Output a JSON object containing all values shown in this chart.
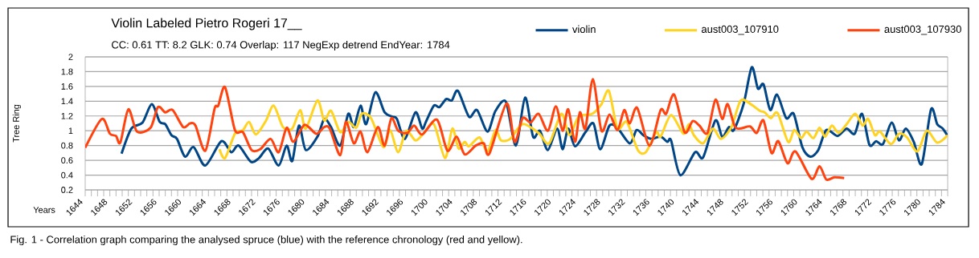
{
  "chart_data": {
    "type": "line",
    "title": "Violin Labeled Pietro Rogeri 17__",
    "subtitle": "CC: 0.61 TT: 8.2 GLK: 0.74 Overlap: 117 NegExp detrend EndYear: 1784",
    "xlabel": "Years",
    "ylabel": "Tree Ring",
    "annotations": [
      "Fig. 1 - Correlation graph comparing the analysed spruce (blue) with the reference chronology (red and yellow)."
    ],
    "xlim": [
      1644,
      1784
    ],
    "ylim": [
      0.2,
      2
    ],
    "xticks": [
      1644,
      1648,
      1652,
      1656,
      1660,
      1664,
      1668,
      1672,
      1676,
      1680,
      1684,
      1688,
      1692,
      1696,
      1700,
      1704,
      1708,
      1712,
      1716,
      1720,
      1724,
      1728,
      1732,
      1736,
      1740,
      1744,
      1748,
      1752,
      1756,
      1760,
      1764,
      1768,
      1772,
      1776,
      1780,
      1784
    ],
    "yticks": [
      0.2,
      0.4,
      0.6,
      0.8,
      1,
      1.2,
      1.4,
      1.6,
      1.8,
      2
    ],
    "grid": "y",
    "legend": "top right",
    "series": [
      {
        "name": "violin",
        "color": "#004586",
        "x": [
          1649.9,
          1651.5,
          1653.3,
          1654.8,
          1656.1,
          1657,
          1658,
          1658.9,
          1660.2,
          1661.6,
          1663.5,
          1666.1,
          1667.7,
          1668.9,
          1670.9,
          1672.2,
          1673.7,
          1675.4,
          1676.7,
          1677.6,
          1678.7,
          1679.8,
          1681.7,
          1682.8,
          1683.9,
          1685.4,
          1686.7,
          1687.6,
          1688.7,
          1689.6,
          1691.1,
          1692.6,
          1693.9,
          1694.6,
          1695.9,
          1697.6,
          1698.7,
          1699.3,
          1700.6,
          1701.5,
          1702.6,
          1703.5,
          1704.5,
          1706.3,
          1707.6,
          1709.3,
          1710.6,
          1712.3,
          1713.9,
          1715.4,
          1716.7,
          1717.8,
          1719.1,
          1720.6,
          1721.5,
          1722.4,
          1723.5,
          1725.2,
          1726.5,
          1727.6,
          1729.1,
          1730.4,
          1732.4,
          1733.5,
          1734.6,
          1735.9,
          1737.4,
          1738.5,
          1739.1,
          1740.6,
          1743,
          1744.3,
          1746.3,
          1747.4,
          1748.5,
          1749.3,
          1750.9,
          1752.2,
          1753.2,
          1754.1,
          1755.2,
          1756.3,
          1757.8,
          1759,
          1760.4,
          1761.7,
          1763,
          1764.3,
          1766.1,
          1767.6,
          1768.9,
          1770.1,
          1771.3,
          1772.4,
          1773.5,
          1774.9,
          1776.1,
          1777.2,
          1778.5,
          1779.8,
          1781.3,
          1782.3,
          1783.2,
          1784
        ],
        "values": [
          0.69,
          1.03,
          1.11,
          1.36,
          1.12,
          1.09,
          0.94,
          0.89,
          0.65,
          0.78,
          0.53,
          0.86,
          0.71,
          0.8,
          0.58,
          0.63,
          0.76,
          0.53,
          0.8,
          0.59,
          1.07,
          0.74,
          0.92,
          1.16,
          1.05,
          0.8,
          1.23,
          1.05,
          1.34,
          1.09,
          1.52,
          1.25,
          1.19,
          1.16,
          0.89,
          1.25,
          1.03,
          1.12,
          1.34,
          1.32,
          1.43,
          1.41,
          1.54,
          1.19,
          1.28,
          0.99,
          1.27,
          1.39,
          0.8,
          1.45,
          0.92,
          1.0,
          0.74,
          1.03,
          0.75,
          1.03,
          0.79,
          0.98,
          1.1,
          0.75,
          1.07,
          1.04,
          0.83,
          1.01,
          0.94,
          0.89,
          0.92,
          0.85,
          0.87,
          0.4,
          0.71,
          0.64,
          1.14,
          0.92,
          1.05,
          1.01,
          1.37,
          1.86,
          1.57,
          1.63,
          1.28,
          1.49,
          1.17,
          1.23,
          0.78,
          0.65,
          0.74,
          1.01,
          0.93,
          1.03,
          0.96,
          1.23,
          0.81,
          0.86,
          0.82,
          1.11,
          0.87,
          1.03,
          0.85,
          0.55,
          1.29,
          1.09,
          1.03,
          0.93
        ]
      },
      {
        "name": "aust003_107910",
        "color": "#ffd320",
        "x": [
          1665.8,
          1666.7,
          1668.3,
          1669.6,
          1670.6,
          1671.7,
          1673.3,
          1674.6,
          1676.1,
          1677.6,
          1678.9,
          1679.8,
          1681.7,
          1682.8,
          1683.9,
          1685.4,
          1686.7,
          1688,
          1688.9,
          1690.4,
          1692.4,
          1693.5,
          1694.8,
          1696.1,
          1697.6,
          1698.9,
          1700.6,
          1702.4,
          1703.6,
          1704.6,
          1705.6,
          1706.3,
          1708,
          1709.3,
          1710.6,
          1711.5,
          1713,
          1715,
          1717.6,
          1719.3,
          1721.3,
          1722.6,
          1724.1,
          1726.3,
          1727.8,
          1729,
          1730.4,
          1731.9,
          1733.7,
          1735,
          1736.7,
          1737.4,
          1739.1,
          1741.1,
          1742,
          1742.8,
          1744.3,
          1745.9,
          1747.2,
          1748.9,
          1750.4,
          1752.2,
          1753.5,
          1754.3,
          1755.3,
          1756.4,
          1758.1,
          1759.1,
          1760.2,
          1761.1,
          1762.2,
          1763.2,
          1764.1,
          1765.2,
          1766.3,
          1767.6,
          1769,
          1770.2,
          1771.1,
          1772.2,
          1773,
          1774.8,
          1776.1,
          1777.4,
          1779.1,
          1780.6,
          1782.3,
          1784
        ],
        "values": [
          0.75,
          0.63,
          0.96,
          1.01,
          1.12,
          0.95,
          1.13,
          1.34,
          1.05,
          1.03,
          1.28,
          1.03,
          1.41,
          1.14,
          1.27,
          0.98,
          1.12,
          1.04,
          1.23,
          1.17,
          0.78,
          1.01,
          0.71,
          1.0,
          0.87,
          0.96,
          1.09,
          0.63,
          1.03,
          0.76,
          0.85,
          0.79,
          0.91,
          0.72,
          1.01,
          0.87,
          0.89,
          1.09,
          0.97,
          0.83,
          1.23,
          0.94,
          1.19,
          1.23,
          1.36,
          1.54,
          1.03,
          1.12,
          0.74,
          0.71,
          0.98,
          0.92,
          1.21,
          0.96,
          1.09,
          0.94,
          0.83,
          1.03,
          0.89,
          1.05,
          1.41,
          1.35,
          1.27,
          1.25,
          1.17,
          1.24,
          0.85,
          1.01,
          0.9,
          0.99,
          0.9,
          1.04,
          0.92,
          1.07,
          0.97,
          1.09,
          1.23,
          1.07,
          1.16,
          0.94,
          0.99,
          0.82,
          0.96,
          0.91,
          0.72,
          1.0,
          0.84,
          0.94
        ]
      },
      {
        "name": "aust003_107930",
        "color": "#ff420e",
        "x": [
          1644,
          1646.7,
          1648,
          1649,
          1649.7,
          1651,
          1652.4,
          1654.6,
          1655.8,
          1657,
          1658.2,
          1659.9,
          1661,
          1661.9,
          1663.5,
          1665,
          1665.6,
          1666.7,
          1668.3,
          1669.6,
          1671,
          1672.4,
          1674.1,
          1675.4,
          1676.7,
          1677.8,
          1679.6,
          1681.5,
          1682.8,
          1683.7,
          1685.4,
          1686.3,
          1687.6,
          1688.7,
          1689.8,
          1691.5,
          1692.6,
          1693.7,
          1694.8,
          1696.3,
          1697.4,
          1698.7,
          1701.1,
          1702.8,
          1704.3,
          1705.6,
          1707.4,
          1708.7,
          1709.6,
          1712.4,
          1713.7,
          1715,
          1716.3,
          1717.6,
          1719.1,
          1720.4,
          1721.5,
          1722.4,
          1723.5,
          1724.3,
          1725.2,
          1726.4,
          1727.8,
          1729.1,
          1730.4,
          1731.5,
          1732.4,
          1733.6,
          1735.6,
          1737.4,
          1738.3,
          1739.6,
          1741.3,
          1742.6,
          1743.7,
          1745,
          1746.3,
          1747.4,
          1748.3,
          1749.6,
          1751.9,
          1753,
          1754.1,
          1755.4,
          1756.5,
          1758,
          1759.3,
          1761.9,
          1763.2,
          1764.3,
          1765.6,
          1767.2
        ],
        "values": [
          0.77,
          1.16,
          0.96,
          0.93,
          0.84,
          1.29,
          0.99,
          1.04,
          1.32,
          1.25,
          1.28,
          1.05,
          1.1,
          1.07,
          0.73,
          1.3,
          1.34,
          1.59,
          1.01,
          0.98,
          0.74,
          0.75,
          0.89,
          0.71,
          1.04,
          0.85,
          1.08,
          0.96,
          1.05,
          1.03,
          0.67,
          1.12,
          0.83,
          0.99,
          0.71,
          1.05,
          0.8,
          1.17,
          1.0,
          0.97,
          1.07,
          0.95,
          1.15,
          0.73,
          0.92,
          0.68,
          0.8,
          0.83,
          0.69,
          1.37,
          0.85,
          1.17,
          1.11,
          1.23,
          1.0,
          1.33,
          1.0,
          1.29,
          0.85,
          1.25,
          1.03,
          1.7,
          1.0,
          1.22,
          1.01,
          1.28,
          1.1,
          1.31,
          0.8,
          1.28,
          1.23,
          1.49,
          0.98,
          1.13,
          1.07,
          0.97,
          1.42,
          1.16,
          1.36,
          1.04,
          1.06,
          0.97,
          1.14,
          0.7,
          0.86,
          0.56,
          0.72,
          0.35,
          0.52,
          0.34,
          0.37,
          0.36
        ]
      }
    ]
  }
}
